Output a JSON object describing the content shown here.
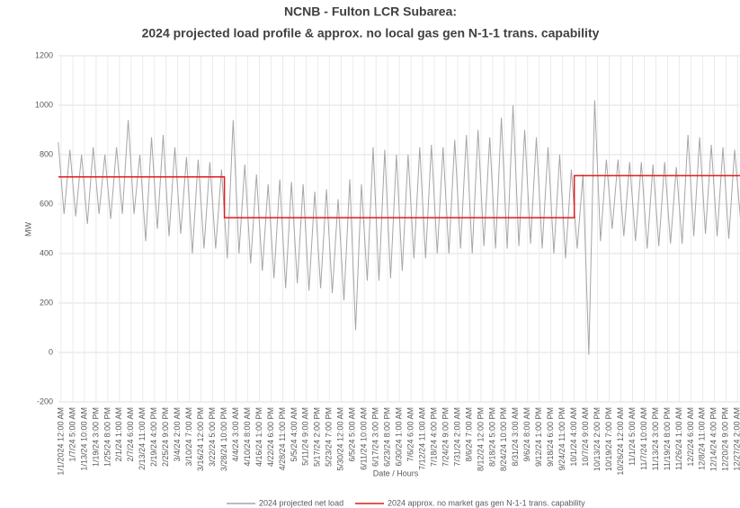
{
  "chart_data": {
    "type": "line",
    "title": "NCNB - Fulton LCR Subarea:",
    "subtitle": "2024 projected load profile & approx. no local gas gen N-1-1 trans. capability",
    "x_label": "Date / Hours",
    "y_label": "MW",
    "categories": [
      "1/1/2024 12:00 AM",
      "1/7/24 5:00 AM",
      "1/13/24 10:00 AM",
      "1/19/24 3:00 PM",
      "1/25/24 8:00 PM",
      "2/1/24 1:00 AM",
      "2/7/24 6:00 AM",
      "2/13/24 11:00 AM",
      "2/19/24 4:00 PM",
      "2/25/24 9:00 PM",
      "3/4/24 2:00 AM",
      "3/10/24 7:00 AM",
      "3/16/24 12:00 PM",
      "3/22/24 5:00 PM",
      "3/28/24 10:00 PM",
      "4/4/24 3:00 AM",
      "4/10/24 8:00 AM",
      "4/16/24 1:00 PM",
      "4/22/24 6:00 PM",
      "4/28/24 11:00 PM",
      "5/5/24 4:00 AM",
      "5/11/24 9:00 AM",
      "5/17/24 2:00 PM",
      "5/23/24 7:00 PM",
      "5/30/24 12:00 AM",
      "6/5/24 5:00 AM",
      "6/11/24 10:00 AM",
      "6/17/24 3:00 PM",
      "6/23/24 8:00 PM",
      "6/30/24 1:00 AM",
      "7/6/24 6:00 AM",
      "7/12/24 11:00 AM",
      "7/18/24 4:00 PM",
      "7/24/24 9:00 PM",
      "7/31/24 2:00 AM",
      "8/6/24 7:00 AM",
      "8/12/24 12:00 PM",
      "8/18/24 5:00 PM",
      "8/24/24 10:00 PM",
      "8/31/24 3:00 AM",
      "9/6/24 8:00 AM",
      "9/12/24 1:00 PM",
      "9/18/24 6:00 PM",
      "9/24/24 11:00 PM",
      "10/1/24 4:00 AM",
      "10/7/24 9:00 AM",
      "10/13/24 2:00 PM",
      "10/19/24 7:00 PM",
      "10/26/24 12:00 AM",
      "11/1/24 5:00 AM",
      "11/7/24 10:00 AM",
      "11/13/24 3:00 PM",
      "11/19/24 8:00 PM",
      "11/26/24 1:00 AM",
      "12/2/24 6:00 AM",
      "12/8/24 11:00 AM",
      "12/14/24 4:00 PM",
      "12/20/24 9:00 PM",
      "12/27/24 2:00 AM"
    ],
    "series": [
      {
        "name": "2024 projected net load",
        "color": "#a6a6a6",
        "values": [
          850,
          820,
          800,
          830,
          800,
          830,
          940,
          800,
          870,
          880,
          830,
          790,
          780,
          770,
          740,
          940,
          760,
          720,
          680,
          700,
          690,
          680,
          650,
          660,
          620,
          700,
          680,
          830,
          820,
          800,
          800,
          830,
          840,
          830,
          860,
          880,
          900,
          870,
          950,
          1000,
          900,
          870,
          830,
          800,
          740,
          720,
          1020,
          780,
          780,
          770,
          770,
          760,
          770,
          750,
          880,
          870,
          840,
          830,
          820
        ],
        "lows": [
          560,
          550,
          520,
          560,
          540,
          560,
          560,
          450,
          500,
          470,
          480,
          400,
          420,
          420,
          380,
          400,
          360,
          330,
          300,
          260,
          280,
          250,
          260,
          240,
          210,
          90,
          290,
          290,
          300,
          330,
          380,
          380,
          400,
          400,
          420,
          400,
          430,
          420,
          420,
          430,
          440,
          420,
          400,
          380,
          420,
          -10,
          450,
          500,
          470,
          450,
          420,
          430,
          440,
          440,
          470,
          480,
          470,
          460,
          540
        ]
      },
      {
        "name": "2024 approx. no market gas gen N-1-1 trans. capability",
        "color": "#e31a1c",
        "values": [
          710,
          710,
          710,
          710,
          710,
          710,
          710,
          710,
          710,
          710,
          710,
          710,
          710,
          710,
          545,
          545,
          545,
          545,
          545,
          545,
          545,
          545,
          545,
          545,
          545,
          545,
          545,
          545,
          545,
          545,
          545,
          545,
          545,
          545,
          545,
          545,
          545,
          545,
          545,
          545,
          545,
          545,
          545,
          545,
          715,
          715,
          715,
          715,
          715,
          715,
          715,
          715,
          715,
          715,
          715,
          715,
          715,
          715,
          715
        ]
      }
    ],
    "ylim": [
      -200,
      1200
    ],
    "yticks": [
      -200,
      0,
      200,
      400,
      600,
      800,
      1000,
      1200
    ],
    "grid": true,
    "legend": "bottom"
  }
}
